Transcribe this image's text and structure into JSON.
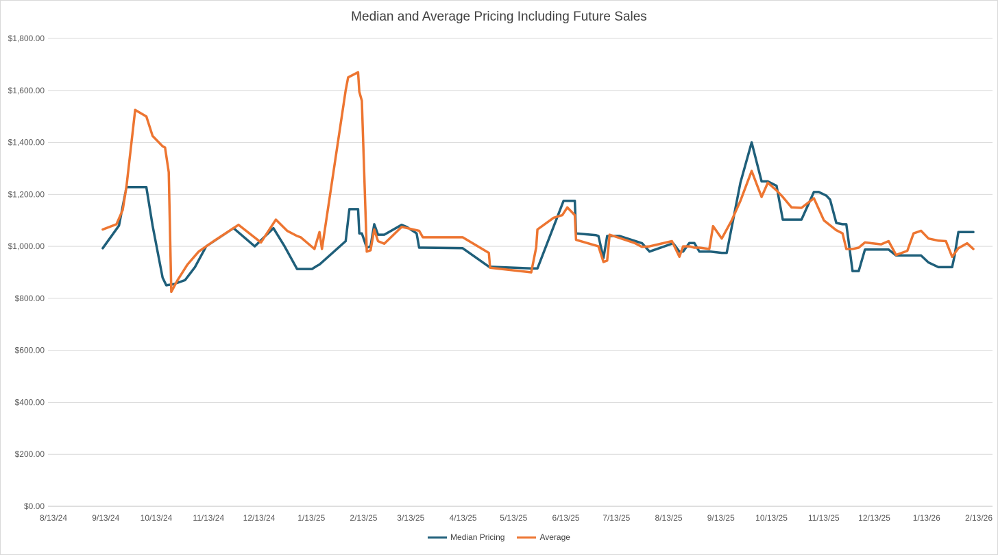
{
  "chart_data": {
    "type": "line",
    "title": "Median and Average Pricing Including Future Sales",
    "xlabel": "",
    "ylabel": "",
    "x_ticks": [
      "8/13/24",
      "9/13/24",
      "10/13/24",
      "11/13/24",
      "12/13/24",
      "1/13/25",
      "2/13/25",
      "3/13/25",
      "4/13/25",
      "5/13/25",
      "6/13/25",
      "7/13/25",
      "8/13/25",
      "9/13/25",
      "10/13/25",
      "11/13/25",
      "12/13/25",
      "1/13/26",
      "2/13/26"
    ],
    "y_ticks": [
      "$0.00",
      "$200.00",
      "$400.00",
      "$600.00",
      "$800.00",
      "$1,000.00",
      "$1,200.00",
      "$1,400.00",
      "$1,600.00",
      "$1,800.00"
    ],
    "ylim": [
      0,
      1800
    ],
    "xlim_days": [
      0,
      560
    ],
    "grid": "horizontal",
    "legend_position": "bottom",
    "series": [
      {
        "name": "Median Pricing",
        "color": "#1f5f7a",
        "points": [
          [
            44,
            993
          ],
          [
            57,
            1080
          ],
          [
            63,
            1228
          ],
          [
            67,
            1228
          ],
          [
            74,
            1228
          ],
          [
            79,
            1228
          ],
          [
            84,
            1080
          ],
          [
            92,
            880
          ],
          [
            95,
            850
          ],
          [
            101,
            855
          ],
          [
            110,
            870
          ],
          [
            118,
            920
          ],
          [
            127,
            1000
          ],
          [
            149,
            1070
          ],
          [
            166,
            1000
          ],
          [
            181,
            1070
          ],
          [
            190,
            1000
          ],
          [
            200,
            913
          ],
          [
            203,
            913
          ],
          [
            212,
            913
          ],
          [
            216,
            925
          ],
          [
            218,
            930
          ],
          [
            239,
            1020
          ],
          [
            242,
            1143
          ],
          [
            249,
            1143
          ],
          [
            250,
            1050
          ],
          [
            252,
            1050
          ],
          [
            256,
            995
          ],
          [
            259,
            1000
          ],
          [
            262,
            1085
          ],
          [
            265,
            1045
          ],
          [
            270,
            1045
          ],
          [
            284,
            1083
          ],
          [
            288,
            1075
          ],
          [
            296,
            1050
          ],
          [
            298,
            995
          ],
          [
            301,
            995
          ],
          [
            333,
            993
          ],
          [
            354,
            922
          ],
          [
            388,
            915
          ],
          [
            393,
            915
          ],
          [
            414,
            1175
          ],
          [
            423,
            1175
          ],
          [
            424,
            1050
          ],
          [
            440,
            1043
          ],
          [
            442,
            1040
          ],
          [
            446,
            955
          ],
          [
            449,
            1040
          ],
          [
            459,
            1040
          ],
          [
            477,
            1012
          ],
          [
            483,
            980
          ],
          [
            502,
            1012
          ],
          [
            507,
            980
          ],
          [
            510,
            980
          ],
          [
            515,
            1013
          ],
          [
            519,
            1013
          ],
          [
            523,
            980
          ],
          [
            532,
            980
          ],
          [
            541,
            975
          ],
          [
            545,
            975
          ],
          [
            556,
            1245
          ],
          [
            565,
            1400
          ],
          [
            573,
            1250
          ],
          [
            578,
            1250
          ],
          [
            585,
            1233
          ],
          [
            590,
            1103
          ],
          [
            605,
            1103
          ],
          [
            615,
            1209
          ],
          [
            619,
            1209
          ],
          [
            625,
            1195
          ],
          [
            628,
            1180
          ],
          [
            633,
            1090
          ],
          [
            638,
            1085
          ],
          [
            641,
            1085
          ],
          [
            646,
            905
          ],
          [
            651,
            905
          ],
          [
            656,
            988
          ],
          [
            669,
            988
          ],
          [
            675,
            988
          ],
          [
            681,
            965
          ],
          [
            695,
            965
          ],
          [
            701,
            965
          ],
          [
            707,
            938
          ],
          [
            715,
            920
          ],
          [
            726,
            920
          ],
          [
            728,
            965
          ],
          [
            731,
            1055
          ],
          [
            743,
            1055
          ]
        ]
      },
      {
        "name": "Average",
        "color": "#ed7531",
        "points": [
          [
            44,
            1065
          ],
          [
            55,
            1085
          ],
          [
            60,
            1140
          ],
          [
            63,
            1230
          ],
          [
            70,
            1525
          ],
          [
            79,
            1500
          ],
          [
            84,
            1425
          ],
          [
            92,
            1385
          ],
          [
            94,
            1380
          ],
          [
            97,
            1285
          ],
          [
            99,
            825
          ],
          [
            104,
            870
          ],
          [
            112,
            930
          ],
          [
            121,
            980
          ],
          [
            133,
            1020
          ],
          [
            153,
            1083
          ],
          [
            171,
            1015
          ],
          [
            183,
            1103
          ],
          [
            192,
            1060
          ],
          [
            200,
            1040
          ],
          [
            203,
            1035
          ],
          [
            214,
            990
          ],
          [
            218,
            1055
          ],
          [
            220,
            990
          ],
          [
            239,
            1600
          ],
          [
            241,
            1650
          ],
          [
            249,
            1670
          ],
          [
            250,
            1595
          ],
          [
            252,
            1560
          ],
          [
            256,
            980
          ],
          [
            259,
            985
          ],
          [
            262,
            1065
          ],
          [
            265,
            1020
          ],
          [
            270,
            1010
          ],
          [
            284,
            1075
          ],
          [
            298,
            1060
          ],
          [
            301,
            1035
          ],
          [
            333,
            1035
          ],
          [
            354,
            975
          ],
          [
            355,
            918
          ],
          [
            388,
            900
          ],
          [
            392,
            995
          ],
          [
            393,
            1065
          ],
          [
            406,
            1110
          ],
          [
            413,
            1120
          ],
          [
            417,
            1150
          ],
          [
            423,
            1120
          ],
          [
            424,
            1025
          ],
          [
            442,
            1000
          ],
          [
            446,
            940
          ],
          [
            449,
            945
          ],
          [
            451,
            1045
          ],
          [
            471,
            1013
          ],
          [
            477,
            998
          ],
          [
            483,
            1000
          ],
          [
            501,
            1020
          ],
          [
            507,
            960
          ],
          [
            510,
            1000
          ],
          [
            515,
            1000
          ],
          [
            519,
            995
          ],
          [
            523,
            995
          ],
          [
            531,
            990
          ],
          [
            534,
            1078
          ],
          [
            541,
            1030
          ],
          [
            549,
            1100
          ],
          [
            556,
            1175
          ],
          [
            565,
            1290
          ],
          [
            573,
            1190
          ],
          [
            578,
            1245
          ],
          [
            585,
            1215
          ],
          [
            590,
            1190
          ],
          [
            597,
            1150
          ],
          [
            605,
            1148
          ],
          [
            615,
            1185
          ],
          [
            623,
            1100
          ],
          [
            633,
            1062
          ],
          [
            638,
            1050
          ],
          [
            641,
            990
          ],
          [
            646,
            990
          ],
          [
            651,
            995
          ],
          [
            656,
            1015
          ],
          [
            669,
            1008
          ],
          [
            675,
            1020
          ],
          [
            681,
            967
          ],
          [
            690,
            983
          ],
          [
            695,
            1050
          ],
          [
            701,
            1060
          ],
          [
            707,
            1030
          ],
          [
            715,
            1022
          ],
          [
            721,
            1020
          ],
          [
            726,
            960
          ],
          [
            731,
            993
          ],
          [
            738,
            1012
          ],
          [
            743,
            990
          ]
        ]
      }
    ]
  }
}
